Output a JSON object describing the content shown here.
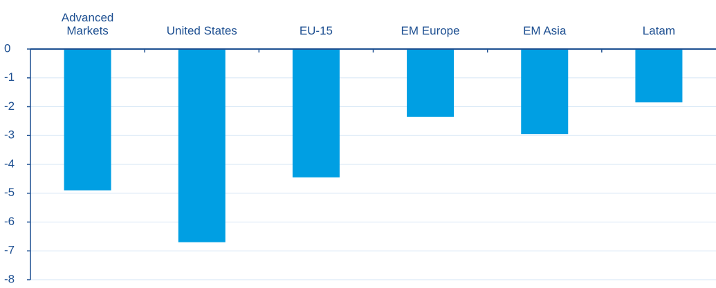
{
  "chart_data": {
    "type": "bar",
    "categories": [
      "Advanced\nMarkets",
      "United States",
      "EU-15",
      "EM Europe",
      "EM Asia",
      "Latam"
    ],
    "values": [
      -4.9,
      -6.7,
      -4.45,
      -2.35,
      -2.95,
      -1.85
    ],
    "color": "#009fe3",
    "ylim": [
      -8,
      0
    ],
    "yticks": [
      0,
      -1,
      -2,
      -3,
      -4,
      -5,
      -6,
      -7,
      -8
    ],
    "grid": true
  }
}
